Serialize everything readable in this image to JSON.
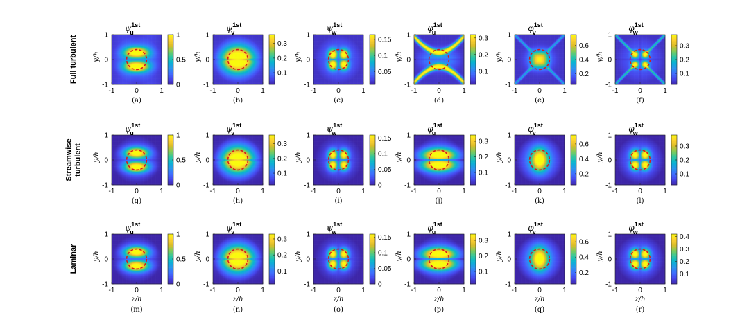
{
  "figure": {
    "row_labels": [
      [
        "Full turbulent"
      ],
      [
        "Streamwise",
        "turbulent"
      ],
      [
        "Laminar"
      ]
    ],
    "xlabel": "z/h",
    "ylabel": "y/h"
  },
  "chart_data": [
    {
      "type": "heatmap",
      "panel": "(a)",
      "row": 0,
      "col": 0,
      "sym": "ψ",
      "sub": "u",
      "sup": "1st",
      "flow": "full",
      "field": "psi_u",
      "xlim": [
        -1,
        1
      ],
      "ylim": [
        -1,
        1
      ],
      "clim": [
        0,
        1
      ],
      "cbar_ticks": [
        0,
        0.5,
        1
      ],
      "cbar_labels": [
        "0",
        "0.5",
        "1"
      ]
    },
    {
      "type": "heatmap",
      "panel": "(b)",
      "row": 0,
      "col": 1,
      "sym": "ψ",
      "sub": "v",
      "sup": "1st",
      "flow": "full",
      "field": "psi_v",
      "xlim": [
        -1,
        1
      ],
      "ylim": [
        -1,
        1
      ],
      "clim": [
        0.02,
        0.36
      ],
      "cbar_ticks": [
        0.1,
        0.2,
        0.3
      ],
      "cbar_labels": [
        "0.1",
        "0.2",
        "0.3"
      ]
    },
    {
      "type": "heatmap",
      "panel": "(c)",
      "row": 0,
      "col": 2,
      "sym": "ψ",
      "sub": "w",
      "sup": "1st",
      "flow": "full",
      "field": "psi_w",
      "xlim": [
        -1,
        1
      ],
      "ylim": [
        -1,
        1
      ],
      "clim": [
        0.01,
        0.165
      ],
      "cbar_ticks": [
        0.05,
        0.1,
        0.15
      ],
      "cbar_labels": [
        "0.05",
        "0.1",
        "0.15"
      ]
    },
    {
      "type": "heatmap",
      "panel": "(d)",
      "row": 0,
      "col": 3,
      "sym": "φ",
      "sub": "u",
      "sup": "1st",
      "flow": "full",
      "field": "phi_u_x",
      "xlim": [
        -1,
        1
      ],
      "ylim": [
        -1,
        1
      ],
      "clim": [
        0.02,
        0.32
      ],
      "cbar_ticks": [
        0.1,
        0.2,
        0.3
      ],
      "cbar_labels": [
        "0.1",
        "0.2",
        "0.3"
      ]
    },
    {
      "type": "heatmap",
      "panel": "(e)",
      "row": 0,
      "col": 4,
      "sym": "φ",
      "sub": "v",
      "sup": "1st",
      "flow": "full",
      "field": "phi_v_sq",
      "xlim": [
        -1,
        1
      ],
      "ylim": [
        -1,
        1
      ],
      "clim": [
        0.05,
        0.75
      ],
      "cbar_ticks": [
        0.2,
        0.4,
        0.6
      ],
      "cbar_labels": [
        "0.2",
        "0.4",
        "0.6"
      ]
    },
    {
      "type": "heatmap",
      "panel": "(f)",
      "row": 0,
      "col": 5,
      "sym": "φ",
      "sub": "w",
      "sup": "1st",
      "flow": "full",
      "field": "phi_w_x",
      "xlim": [
        -1,
        1
      ],
      "ylim": [
        -1,
        1
      ],
      "clim": [
        0.02,
        0.38
      ],
      "cbar_ticks": [
        0.1,
        0.2,
        0.3
      ],
      "cbar_labels": [
        "0.1",
        "0.2",
        "0.3"
      ]
    },
    {
      "type": "heatmap",
      "panel": "(g)",
      "row": 1,
      "col": 0,
      "sym": "ψ",
      "sub": "u",
      "sup": "1st",
      "flow": "stream",
      "field": "psi_u",
      "xlim": [
        -1,
        1
      ],
      "ylim": [
        -1,
        1
      ],
      "clim": [
        0,
        1
      ],
      "cbar_ticks": [
        0,
        0.5,
        1
      ],
      "cbar_labels": [
        "0",
        "0.5",
        "1"
      ]
    },
    {
      "type": "heatmap",
      "panel": "(h)",
      "row": 1,
      "col": 1,
      "sym": "ψ",
      "sub": "v",
      "sup": "1st",
      "flow": "stream",
      "field": "psi_v",
      "xlim": [
        -1,
        1
      ],
      "ylim": [
        -1,
        1
      ],
      "clim": [
        0.02,
        0.36
      ],
      "cbar_ticks": [
        0.1,
        0.2,
        0.3
      ],
      "cbar_labels": [
        "0.1",
        "0.2",
        "0.3"
      ]
    },
    {
      "type": "heatmap",
      "panel": "(i)",
      "row": 1,
      "col": 2,
      "sym": "ψ",
      "sub": "w",
      "sup": "1st",
      "flow": "stream",
      "field": "psi_w",
      "xlim": [
        -1,
        1
      ],
      "ylim": [
        -1,
        1
      ],
      "clim": [
        0,
        0.16
      ],
      "cbar_ticks": [
        0,
        0.05,
        0.1,
        0.15
      ],
      "cbar_labels": [
        "0",
        "0.05",
        "0.1",
        "0.15"
      ]
    },
    {
      "type": "heatmap",
      "panel": "(j)",
      "row": 1,
      "col": 3,
      "sym": "φ",
      "sub": "u",
      "sup": "1st",
      "flow": "stream",
      "field": "phi_u_lam",
      "xlim": [
        -1,
        1
      ],
      "ylim": [
        -1,
        1
      ],
      "clim": [
        0.02,
        0.34
      ],
      "cbar_ticks": [
        0.1,
        0.2,
        0.3
      ],
      "cbar_labels": [
        "0.1",
        "0.2",
        "0.3"
      ]
    },
    {
      "type": "heatmap",
      "panel": "(k)",
      "row": 1,
      "col": 4,
      "sym": "φ",
      "sub": "v",
      "sup": "1st",
      "flow": "stream",
      "field": "phi_v_lam",
      "xlim": [
        -1,
        1
      ],
      "ylim": [
        -1,
        1
      ],
      "clim": [
        0.05,
        0.72
      ],
      "cbar_ticks": [
        0.2,
        0.4,
        0.6
      ],
      "cbar_labels": [
        "0.2",
        "0.4",
        "0.6"
      ]
    },
    {
      "type": "heatmap",
      "panel": "(l)",
      "row": 1,
      "col": 5,
      "sym": "φ",
      "sub": "w",
      "sup": "1st",
      "flow": "stream",
      "field": "phi_w_lam",
      "xlim": [
        -1,
        1
      ],
      "ylim": [
        -1,
        1
      ],
      "clim": [
        0.02,
        0.38
      ],
      "cbar_ticks": [
        0.1,
        0.2,
        0.3
      ],
      "cbar_labels": [
        "0.1",
        "0.2",
        "0.3"
      ]
    },
    {
      "type": "heatmap",
      "panel": "(m)",
      "row": 2,
      "col": 0,
      "sym": "ψ",
      "sub": "u",
      "sup": "1st",
      "flow": "laminar",
      "field": "psi_u",
      "xlim": [
        -1,
        1
      ],
      "ylim": [
        -1,
        1
      ],
      "clim": [
        0,
        1
      ],
      "cbar_ticks": [
        0,
        0.5,
        1
      ],
      "cbar_labels": [
        "0",
        "0.5",
        "1"
      ]
    },
    {
      "type": "heatmap",
      "panel": "(n)",
      "row": 2,
      "col": 1,
      "sym": "ψ",
      "sub": "v",
      "sup": "1st",
      "flow": "laminar",
      "field": "psi_v",
      "xlim": [
        -1,
        1
      ],
      "ylim": [
        -1,
        1
      ],
      "clim": [
        0.02,
        0.33
      ],
      "cbar_ticks": [
        0.1,
        0.2,
        0.3
      ],
      "cbar_labels": [
        "0.1",
        "0.2",
        "0.3"
      ]
    },
    {
      "type": "heatmap",
      "panel": "(o)",
      "row": 2,
      "col": 2,
      "sym": "ψ",
      "sub": "w",
      "sup": "1st",
      "flow": "laminar",
      "field": "psi_w",
      "xlim": [
        -1,
        1
      ],
      "ylim": [
        -1,
        1
      ],
      "clim": [
        0,
        0.16
      ],
      "cbar_ticks": [
        0,
        0.05,
        0.1,
        0.15
      ],
      "cbar_labels": [
        "0",
        "0.05",
        "0.1",
        "0.15"
      ]
    },
    {
      "type": "heatmap",
      "panel": "(p)",
      "row": 2,
      "col": 3,
      "sym": "φ",
      "sub": "u",
      "sup": "1st",
      "flow": "laminar",
      "field": "phi_u_lam",
      "xlim": [
        -1,
        1
      ],
      "ylim": [
        -1,
        1
      ],
      "clim": [
        0.02,
        0.34
      ],
      "cbar_ticks": [
        0.1,
        0.2,
        0.3
      ],
      "cbar_labels": [
        "0.1",
        "0.2",
        "0.3"
      ]
    },
    {
      "type": "heatmap",
      "panel": "(q)",
      "row": 2,
      "col": 4,
      "sym": "φ",
      "sub": "v",
      "sup": "1st",
      "flow": "laminar",
      "field": "phi_v_lam",
      "xlim": [
        -1,
        1
      ],
      "ylim": [
        -1,
        1
      ],
      "clim": [
        0.05,
        0.7
      ],
      "cbar_ticks": [
        0.2,
        0.4,
        0.6
      ],
      "cbar_labels": [
        "0.2",
        "0.4",
        "0.6"
      ]
    },
    {
      "type": "heatmap",
      "panel": "(r)",
      "row": 2,
      "col": 5,
      "sym": "φ",
      "sub": "w",
      "sup": "1st",
      "flow": "laminar",
      "field": "phi_w_lam",
      "xlim": [
        -1,
        1
      ],
      "ylim": [
        -1,
        1
      ],
      "clim": [
        0.02,
        0.42
      ],
      "cbar_ticks": [
        0.1,
        0.2,
        0.3,
        0.4
      ],
      "cbar_labels": [
        "0.1",
        "0.2",
        "0.3",
        "0.4"
      ]
    }
  ]
}
